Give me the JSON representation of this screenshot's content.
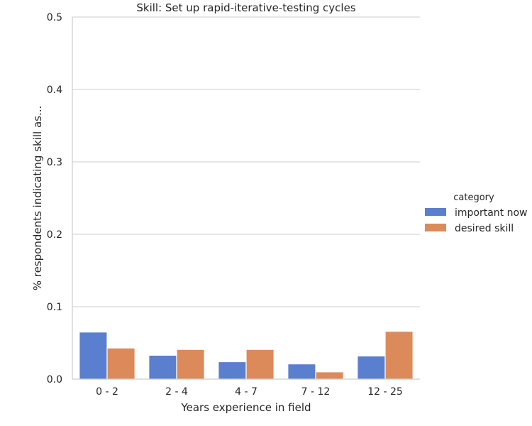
{
  "chart_data": {
    "type": "bar",
    "title": "Skill: Set up rapid-iterative-testing cycles",
    "xlabel": "Years experience in field",
    "ylabel": "% respondents indicating skill as...",
    "categories": [
      "0 - 2",
      "2 - 4",
      "4 - 7",
      "7 - 12",
      "12 - 25"
    ],
    "series": [
      {
        "name": "important now",
        "color": "#5a7fcf",
        "values": [
          0.065,
          0.033,
          0.024,
          0.021,
          0.032
        ]
      },
      {
        "name": "desired skill",
        "color": "#dc8a5a",
        "values": [
          0.043,
          0.041,
          0.041,
          0.01,
          0.066
        ]
      }
    ],
    "ylim": [
      0,
      0.5
    ],
    "yticks": [
      "0.0",
      "0.1",
      "0.2",
      "0.3",
      "0.4",
      "0.5"
    ],
    "grid": true,
    "legend": {
      "title": "category",
      "placement": "right"
    }
  }
}
